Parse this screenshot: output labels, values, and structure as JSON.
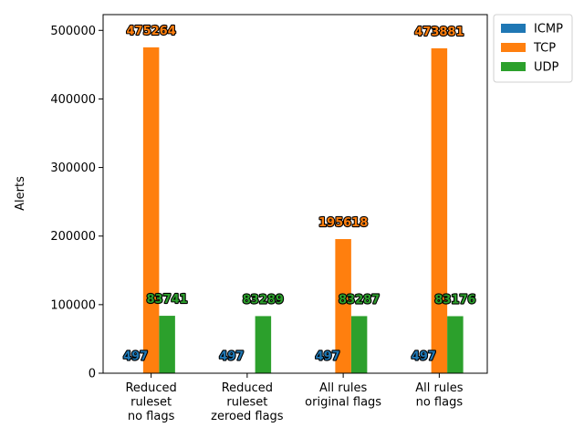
{
  "chart_data": {
    "type": "bar",
    "title": "",
    "xlabel": "",
    "ylabel": "Alerts",
    "ylim": [
      0,
      523000
    ],
    "yticks": [
      0,
      100000,
      200000,
      300000,
      400000,
      500000
    ],
    "ytick_labels": [
      "0",
      "100000",
      "200000",
      "300000",
      "400000",
      "500000"
    ],
    "categories": [
      [
        "Reduced",
        "ruleset",
        "no flags"
      ],
      [
        "Reduced",
        "ruleset",
        "zeroed flags"
      ],
      [
        "All rules",
        "original flags"
      ],
      [
        "All rules",
        "no flags"
      ]
    ],
    "series": [
      {
        "name": "ICMP",
        "color": "#1f77b4",
        "values": [
          497,
          497,
          497,
          497
        ]
      },
      {
        "name": "TCP",
        "color": "#ff7f0e",
        "values": [
          475264,
          0,
          195618,
          473881
        ]
      },
      {
        "name": "UDP",
        "color": "#2ca02c",
        "values": [
          83741,
          83289,
          83287,
          83176
        ]
      }
    ],
    "data_labels": [
      [
        "497",
        "497",
        "497",
        "497"
      ],
      [
        "475264",
        "",
        "195618",
        "473881"
      ],
      [
        "83741",
        "83289",
        "83287",
        "83176"
      ]
    ],
    "legend_position": "outside-top-right",
    "grid": false
  }
}
